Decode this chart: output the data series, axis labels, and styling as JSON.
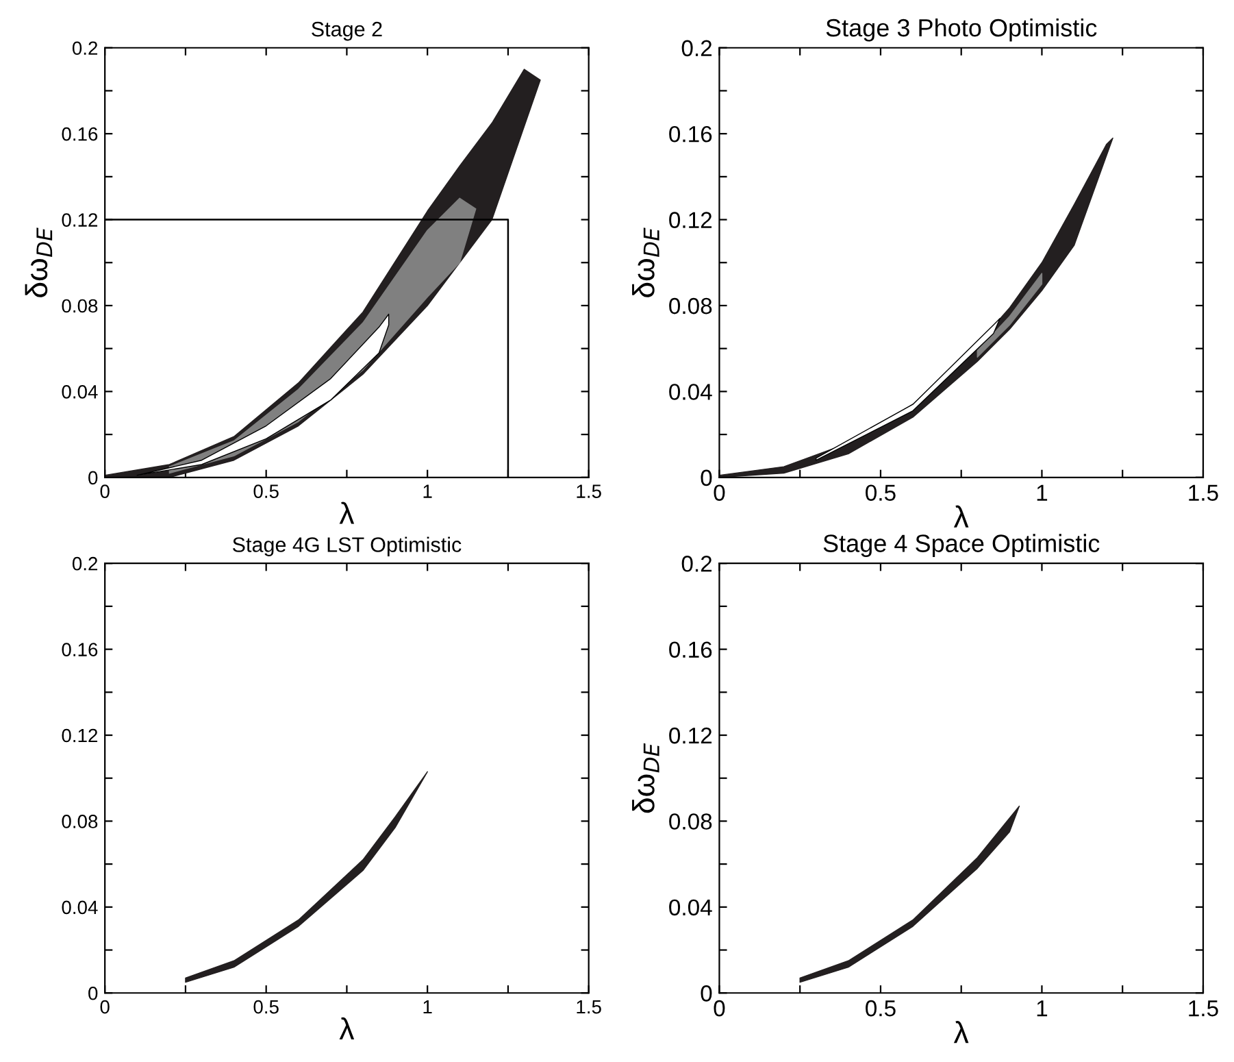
{
  "chart_data": [
    {
      "type": "area",
      "title": "Stage 2",
      "xlabel": "λ",
      "ylabel": "δω$_{DE}$",
      "xlim": [
        0,
        1.5
      ],
      "ylim": [
        0,
        0.2
      ],
      "xticks": [
        0,
        {
          "value": 0.25,
          "label": null
        },
        0.5,
        {
          "value": 0.75,
          "label": null
        },
        1,
        {
          "value": 1.25,
          "label": null
        },
        1.5
      ],
      "yticks": [
        0,
        {
          "value": 0.02,
          "label": null
        },
        0.04,
        {
          "value": 0.06,
          "label": null
        },
        0.08,
        {
          "value": 0.1,
          "label": null
        },
        0.12,
        {
          "value": 0.14,
          "label": null
        },
        0.16,
        {
          "value": 0.18,
          "label": null
        },
        0.2
      ],
      "series": [
        {
          "color": "#231f20",
          "x": [
            0,
            0.2,
            0.4,
            0.6,
            0.8,
            1.0,
            1.1,
            1.2,
            1.3,
            1.35,
            1.2,
            1.1,
            1.0,
            0.8,
            0.6,
            0.4,
            0.2,
            0
          ],
          "values": [
            0.001,
            0.006,
            0.019,
            0.044,
            0.077,
            0.124,
            0.145,
            0.165,
            0.19,
            0.185,
            0.12,
            0.1,
            0.08,
            0.048,
            0.024,
            0.008,
            0,
            0
          ]
        },
        {
          "color": "#808080",
          "x": [
            0.2,
            0.4,
            0.6,
            0.8,
            1.0,
            1.1,
            1.15,
            1.1,
            1.0,
            0.8,
            0.6,
            0.4,
            0.2
          ],
          "values": [
            0.005,
            0.017,
            0.041,
            0.072,
            0.115,
            0.13,
            0.125,
            0.1,
            0.084,
            0.05,
            0.026,
            0.01,
            0.002
          ]
        },
        {
          "color": "#ffffff",
          "x": [
            0.1,
            0.3,
            0.5,
            0.7,
            0.85,
            0.88,
            0.88,
            0.85,
            0.7,
            0.5,
            0.3,
            0.1
          ],
          "values": [
            0.001,
            0.008,
            0.024,
            0.046,
            0.07,
            0.076,
            0.071,
            0.058,
            0.036,
            0.018,
            0.006,
            0.001
          ]
        },
        {
          "type": "line",
          "color": "#000000",
          "x": [
            0,
            1.25,
            1.25
          ],
          "values": [
            0.12,
            0.12,
            0
          ]
        }
      ]
    },
    {
      "type": "area",
      "title": "Stage 3 Photo Optimistic",
      "xlabel": "λ",
      "ylabel": "δω$_{DE}$",
      "xlim": [
        0,
        1.5
      ],
      "ylim": [
        0,
        0.2
      ],
      "xticks": [
        0,
        {
          "value": 0.25,
          "label": null
        },
        0.5,
        {
          "value": 0.75,
          "label": null
        },
        1,
        {
          "value": 1.25,
          "label": null
        },
        1.5
      ],
      "yticks": [
        0,
        {
          "value": 0.02,
          "label": null
        },
        0.04,
        {
          "value": 0.06,
          "label": null
        },
        0.08,
        {
          "value": 0.1,
          "label": null
        },
        0.12,
        {
          "value": 0.14,
          "label": null
        },
        0.16,
        {
          "value": 0.18,
          "label": null
        },
        0.2
      ],
      "series": [
        {
          "color": "#231f20",
          "x": [
            0,
            0.2,
            0.4,
            0.6,
            0.8,
            0.9,
            1.0,
            1.1,
            1.2,
            1.22,
            1.1,
            1.0,
            0.9,
            0.8,
            0.6,
            0.4,
            0.2,
            0
          ],
          "values": [
            0.001,
            0.005,
            0.016,
            0.034,
            0.062,
            0.079,
            0.1,
            0.127,
            0.155,
            0.158,
            0.108,
            0.087,
            0.069,
            0.054,
            0.028,
            0.011,
            0.002,
            0
          ]
        },
        {
          "color": "#808080",
          "x": [
            0.8,
            0.9,
            1.0,
            1.0,
            0.9,
            0.8
          ],
          "values": [
            0.059,
            0.075,
            0.095,
            0.09,
            0.071,
            0.056
          ]
        },
        {
          "color": "#ffffff",
          "x": [
            0.3,
            0.6,
            0.85,
            0.87,
            0.85,
            0.6,
            0.3
          ],
          "values": [
            0.009,
            0.034,
            0.071,
            0.074,
            0.067,
            0.031,
            0.008
          ]
        }
      ]
    },
    {
      "type": "area",
      "title": "Stage 4G LST Optimistic",
      "xlabel": "λ",
      "xlim": [
        0,
        1.5
      ],
      "ylim": [
        0,
        0.2
      ],
      "xticks": [
        0,
        {
          "value": 0.25,
          "label": null
        },
        0.5,
        {
          "value": 0.75,
          "label": null
        },
        1,
        {
          "value": 1.25,
          "label": null
        },
        1.5
      ],
      "yticks": [
        0,
        {
          "value": 0.02,
          "label": null
        },
        0.04,
        {
          "value": 0.06,
          "label": null
        },
        0.08,
        {
          "value": 0.1,
          "label": null
        },
        0.12,
        {
          "value": 0.14,
          "label": null
        },
        0.16,
        {
          "value": 0.18,
          "label": null
        },
        0.2
      ],
      "series": [
        {
          "color": "#231f20",
          "x": [
            0.25,
            0.4,
            0.6,
            0.8,
            0.9,
            1.0,
            0.9,
            0.8,
            0.6,
            0.4,
            0.25
          ],
          "values": [
            0.007,
            0.015,
            0.034,
            0.062,
            0.082,
            0.103,
            0.077,
            0.057,
            0.031,
            0.012,
            0.005
          ]
        }
      ]
    },
    {
      "type": "area",
      "title": "Stage 4 Space Optimistic",
      "xlabel": "λ",
      "ylabel": "δω$_{DE}$",
      "xlim": [
        0,
        1.5
      ],
      "ylim": [
        0,
        0.2
      ],
      "xticks": [
        0,
        {
          "value": 0.25,
          "label": null
        },
        0.5,
        {
          "value": 0.75,
          "label": null
        },
        1,
        {
          "value": 1.25,
          "label": null
        },
        1.5
      ],
      "yticks": [
        0,
        {
          "value": 0.02,
          "label": null
        },
        0.04,
        {
          "value": 0.06,
          "label": null
        },
        0.08,
        {
          "value": 0.1,
          "label": null
        },
        0.12,
        {
          "value": 0.14,
          "label": null
        },
        0.16,
        {
          "value": 0.18,
          "label": null
        },
        0.2
      ],
      "series": [
        {
          "color": "#231f20",
          "x": [
            0.25,
            0.4,
            0.6,
            0.8,
            0.93,
            0.9,
            0.8,
            0.6,
            0.4,
            0.25
          ],
          "values": [
            0.007,
            0.015,
            0.034,
            0.063,
            0.087,
            0.075,
            0.058,
            0.031,
            0.012,
            0.005
          ]
        }
      ]
    }
  ]
}
